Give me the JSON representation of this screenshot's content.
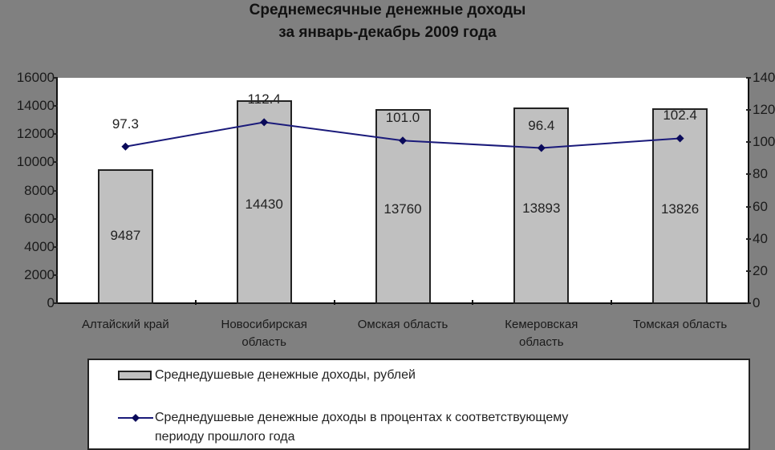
{
  "chart_data": {
    "type": "bar+line",
    "title": "Среднемесячные денежные доходы",
    "subtitle": "за январь-декабрь 2009 года",
    "categories": [
      "Алтайский край",
      "Новосибирская область",
      "Омская область",
      "Кемеровская область",
      "Томская область"
    ],
    "category_lines": [
      [
        "Алтайский край"
      ],
      [
        "Новосибирская",
        "область"
      ],
      [
        "Омская область"
      ],
      [
        "Кемеровская",
        "область"
      ],
      [
        "Томская область"
      ]
    ],
    "series": [
      {
        "name": "Среднедушевые денежные доходы, рублей",
        "type": "bar",
        "axis": "left",
        "color": "#c0c0c0",
        "values": [
          9487,
          14430,
          13760,
          13893,
          13826
        ],
        "labels": [
          "9487",
          "14430",
          "13760",
          "13893",
          "13826"
        ]
      },
      {
        "name": "Среднедушевые денежные доходы в процентах к соответствующему периоду прошлого года",
        "type": "line",
        "axis": "right",
        "color": "#1a1a7a",
        "values": [
          97.3,
          112.4,
          101.0,
          96.4,
          102.4
        ],
        "labels": [
          "97.3",
          "112.4",
          "101.0",
          "96.4",
          "102.4"
        ]
      }
    ],
    "y_left": {
      "min": 0,
      "max": 16000,
      "ticks": [
        "0",
        "2000",
        "4000",
        "6000",
        "8000",
        "10000",
        "12000",
        "14000",
        "16000"
      ]
    },
    "y_right": {
      "min": 0,
      "max": 140,
      "ticks": [
        "0",
        "20",
        "40",
        "60",
        "80",
        "100",
        "120",
        "140"
      ]
    },
    "xlabel": "",
    "ylabel": "",
    "grid": false,
    "legend_position": "bottom"
  },
  "legend": {
    "bar_label": "Среднедушевые денежные доходы, рублей",
    "line_label_1": "Среднедушевые денежные доходы в процентах к соответствующему",
    "line_label_2": "периоду прошлого года"
  }
}
